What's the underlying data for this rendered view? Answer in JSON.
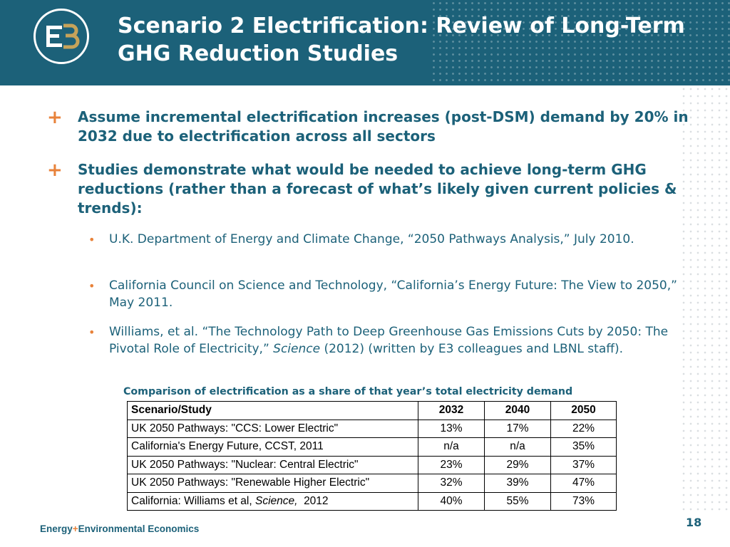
{
  "header": {
    "title": "Scenario 2 Electrification: Review of Long-Term GHG Reduction Studies",
    "logo": {
      "icon": "e3-logo",
      "text": "E3"
    }
  },
  "bullets": [
    {
      "icon": "plus-icon",
      "text": "Assume incremental electrification increases (post-DSM) demand by 20% in 2032 due to electrification across all sectors"
    },
    {
      "icon": "plus-icon",
      "text": "Studies demonstrate what would be needed to achieve long-term GHG reductions (rather than a forecast of what’s likely given current policies & trends):"
    }
  ],
  "sub_bullets": [
    {
      "text": "U.K. Department of Energy and Climate Change, “2050 Pathways Analysis,” July 2010."
    },
    {
      "text": "California Council on Science and Technology, “California’s Energy Future: The View to 2050,” May 2011."
    },
    {
      "text_before": "Williams, et al. “The Technology Path to Deep Greenhouse Gas Emissions Cuts by 2050: The Pivotal Role of Electricity,” ",
      "text_italic": "Science",
      "text_after": " (2012) (written by E3 colleagues and LBNL staff)."
    }
  ],
  "table": {
    "caption": "Comparison of electrification as a share of that year’s total electricity demand",
    "headers": [
      "Scenario/Study",
      "2032",
      "2040",
      "2050"
    ],
    "rows": [
      {
        "study": "UK 2050 Pathways: \"CCS: Lower Electric\"",
        "v2032": "13%",
        "v2040": "17%",
        "v2050": "22%"
      },
      {
        "study": "California's Energy Future, CCST, 2011",
        "v2032": "n/a",
        "v2040": "n/a",
        "v2050": "35%"
      },
      {
        "study": "UK 2050 Pathways: \"Nuclear: Central Electric\"",
        "v2032": "23%",
        "v2040": "29%",
        "v2050": "37%"
      },
      {
        "study": "UK 2050 Pathways: \"Renewable Higher Electric\"",
        "v2032": "32%",
        "v2040": "39%",
        "v2050": "47%"
      },
      {
        "study_before": "California: Williams et al, ",
        "study_italic": "Science,",
        "study_after": "  2012",
        "v2032": "40%",
        "v2040": "55%",
        "v2050": "73%"
      }
    ]
  },
  "footer": {
    "brand_part1": "Energy",
    "brand_plus": "+",
    "brand_part2": "Environmental Economics",
    "page_number": "18"
  },
  "colors": {
    "header_bg": "#1c6179",
    "text_teal": "#1c6179",
    "accent_orange": "#e8823a",
    "logo_gold": "#c6a35a"
  }
}
